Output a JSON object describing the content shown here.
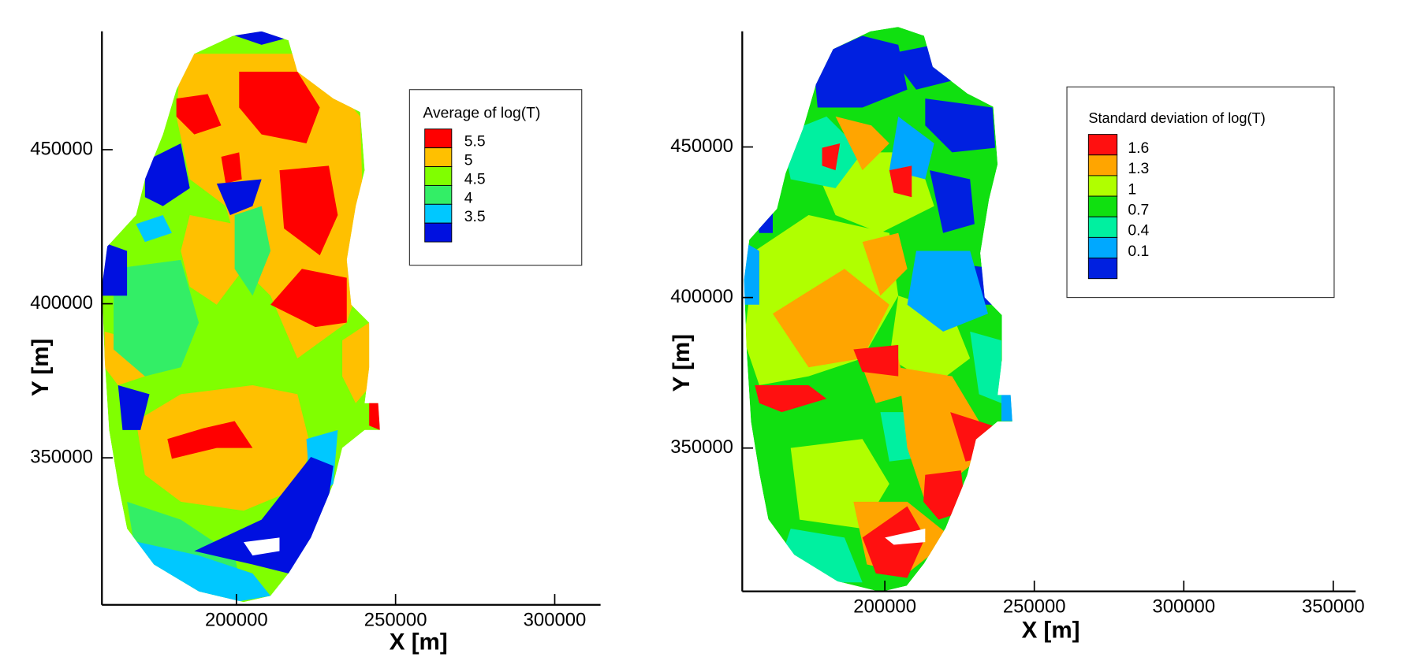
{
  "chart_data": [
    {
      "type": "contour",
      "legend_title": "Average of log(T)",
      "levels": [
        5.5,
        5,
        4.5,
        4,
        3.5
      ],
      "colors": [
        "#ff0000",
        "#ffc000",
        "#80ff00",
        "#33ee66",
        "#00c8ff",
        "#0010e0"
      ],
      "xlabel": "X [m]",
      "ylabel": "Y [m]",
      "xlim": [
        157750,
        314400
      ],
      "ylim": [
        302300,
        488400
      ],
      "xticks": [
        200000,
        250000,
        300000
      ],
      "yticks": [
        350000,
        400000,
        450000
      ]
    },
    {
      "type": "contour",
      "legend_title": "Standard deviation of log(T)",
      "levels": [
        1.6,
        1.3,
        1,
        0.7,
        0.4,
        0.1
      ],
      "colors": [
        "#ff1010",
        "#ffa500",
        "#b0ff00",
        "#10e010",
        "#00f0a0",
        "#00a8ff",
        "#0020e0"
      ],
      "xlabel": "X [m]",
      "ylabel": "Y [m]",
      "xlim": [
        152300,
        357500
      ],
      "ylim": [
        302400,
        488400
      ],
      "xticks": [
        200000,
        250000,
        300000,
        350000
      ],
      "yticks": [
        350000,
        400000,
        450000
      ]
    }
  ]
}
